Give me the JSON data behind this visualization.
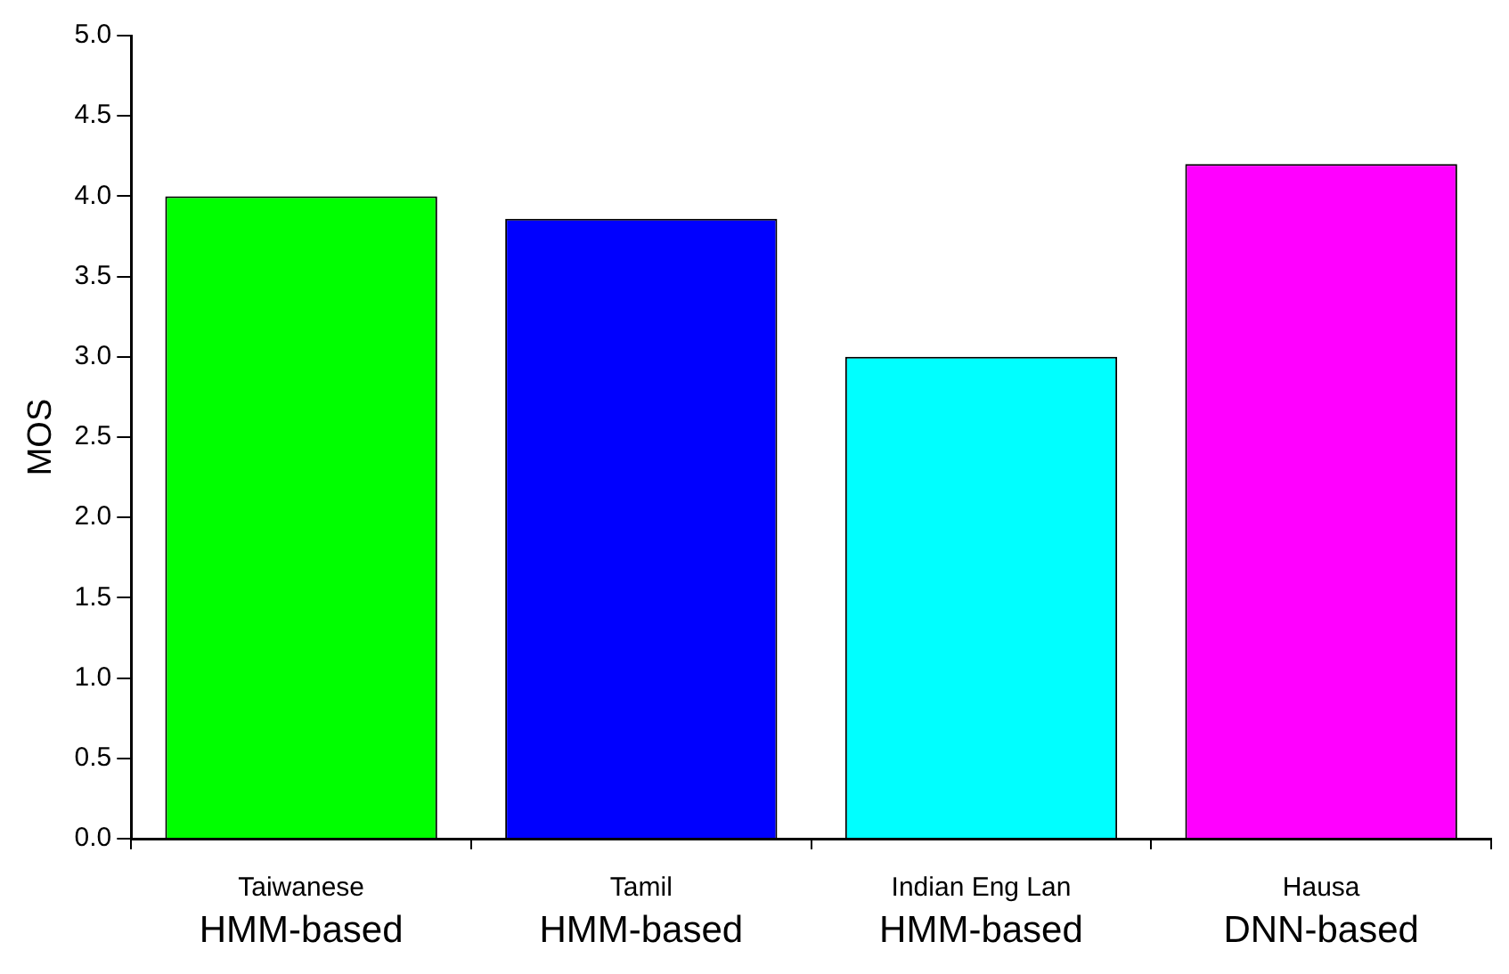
{
  "chart_data": {
    "type": "bar",
    "ylabel": "MOS",
    "categories": [
      "Taiwanese\nHMM-based",
      "Tamil\nHMM-based",
      "Indian Eng Lan\nHMM-based",
      "Hausa\nDNN-based"
    ],
    "values": [
      4.0,
      3.86,
      3.0,
      4.2
    ],
    "colors": [
      "#00ff00",
      "#0000ff",
      "#00ffff",
      "#ff00ff"
    ],
    "ylim": [
      0,
      5
    ],
    "yticks": [
      {
        "value": 0,
        "label": "0.0"
      },
      {
        "value": 0.5,
        "label": "0.5"
      },
      {
        "value": 1,
        "label": "1.0"
      },
      {
        "value": 1.5,
        "label": "1.5"
      },
      {
        "value": 2,
        "label": "2.0"
      },
      {
        "value": 2.5,
        "label": "2.5"
      },
      {
        "value": 3,
        "label": "3.0"
      },
      {
        "value": 3.5,
        "label": "3.5"
      },
      {
        "value": 4,
        "label": "4.0"
      },
      {
        "value": 4.5,
        "label": "4.5"
      },
      {
        "value": 5,
        "label": "5.0"
      }
    ],
    "grid": false,
    "legend": false
  }
}
